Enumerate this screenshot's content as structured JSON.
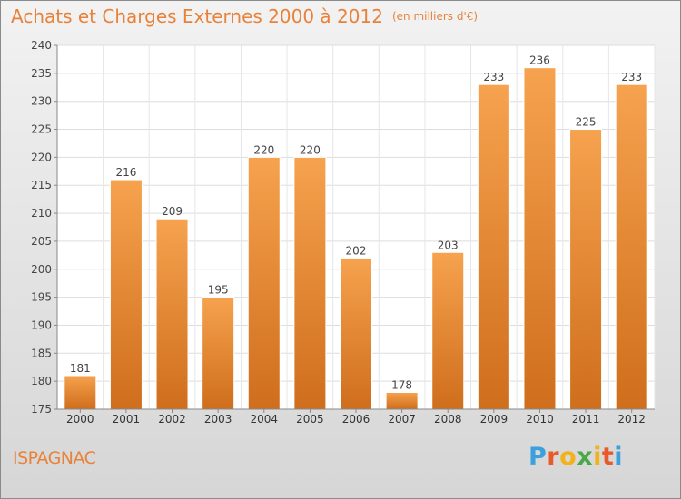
{
  "title": "Achats et Charges Externes 2000 à 2012",
  "subtitle": "(en milliers d'€)",
  "place": "ISPAGNAC",
  "brand": {
    "letters": [
      "P",
      "r",
      "o",
      "x",
      "i",
      "t",
      "i"
    ],
    "colors": [
      "#3ca0dc",
      "#e85a2a",
      "#f2b21c",
      "#4aa848",
      "#f2b21c",
      "#e85a2a",
      "#3ca0dc"
    ]
  },
  "colors": {
    "accent": "#e8823a",
    "bar_top": "#f6a24e",
    "bar_bottom": "#cf6e1c"
  },
  "chart_data": {
    "type": "bar",
    "categories": [
      "2000",
      "2001",
      "2002",
      "2003",
      "2004",
      "2005",
      "2006",
      "2007",
      "2008",
      "2009",
      "2010",
      "2011",
      "2012"
    ],
    "values": [
      181,
      216,
      209,
      195,
      220,
      220,
      202,
      178,
      203,
      233,
      236,
      225,
      233
    ],
    "ylim": [
      175,
      240
    ],
    "yticks": [
      175,
      180,
      185,
      190,
      195,
      200,
      205,
      210,
      215,
      220,
      225,
      230,
      235,
      240
    ],
    "grid": true,
    "legend": "none"
  }
}
